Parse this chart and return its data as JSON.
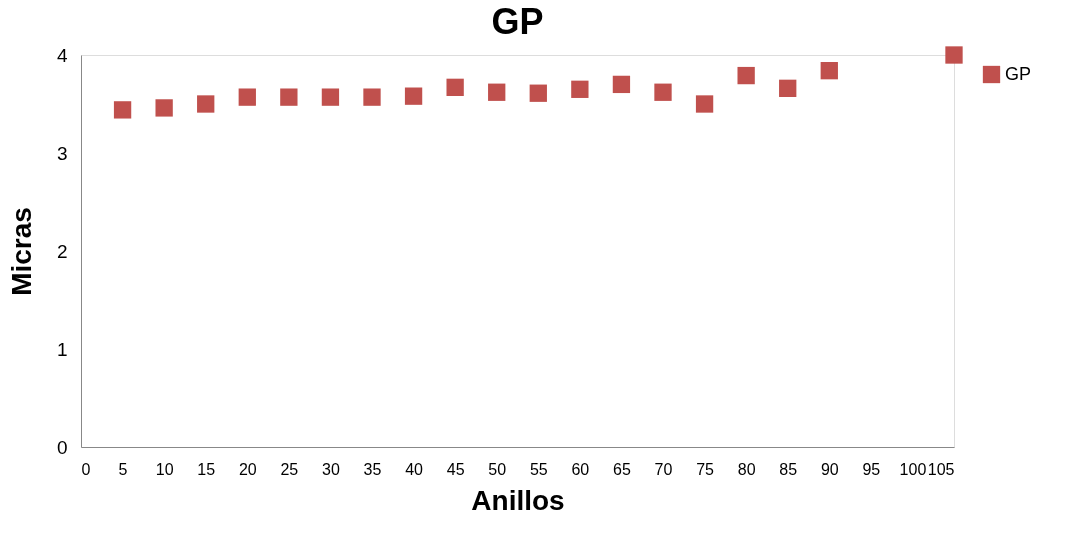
{
  "chart_data": {
    "type": "scatter",
    "title": "GP",
    "xlabel": "Anillos",
    "ylabel": "Micras",
    "x": [
      5,
      10,
      15,
      20,
      25,
      30,
      35,
      40,
      45,
      50,
      55,
      60,
      65,
      70,
      75,
      80,
      85,
      90,
      105
    ],
    "series": [
      {
        "name": "GP",
        "color": "#c0504d",
        "values": [
          3.44,
          3.46,
          3.5,
          3.57,
          3.57,
          3.57,
          3.57,
          3.58,
          3.67,
          3.62,
          3.61,
          3.65,
          3.7,
          3.62,
          3.5,
          3.79,
          3.66,
          3.84,
          4.0
        ]
      }
    ],
    "xlim": [
      0,
      105
    ],
    "xticks": [
      0,
      5,
      10,
      15,
      20,
      25,
      30,
      35,
      40,
      45,
      50,
      55,
      60,
      65,
      70,
      75,
      80,
      85,
      90,
      95,
      100,
      105
    ],
    "ylim": [
      0,
      4
    ],
    "yticks": [
      0,
      1,
      2,
      3,
      4
    ],
    "marker": "square",
    "grid": false,
    "legend": "right"
  }
}
